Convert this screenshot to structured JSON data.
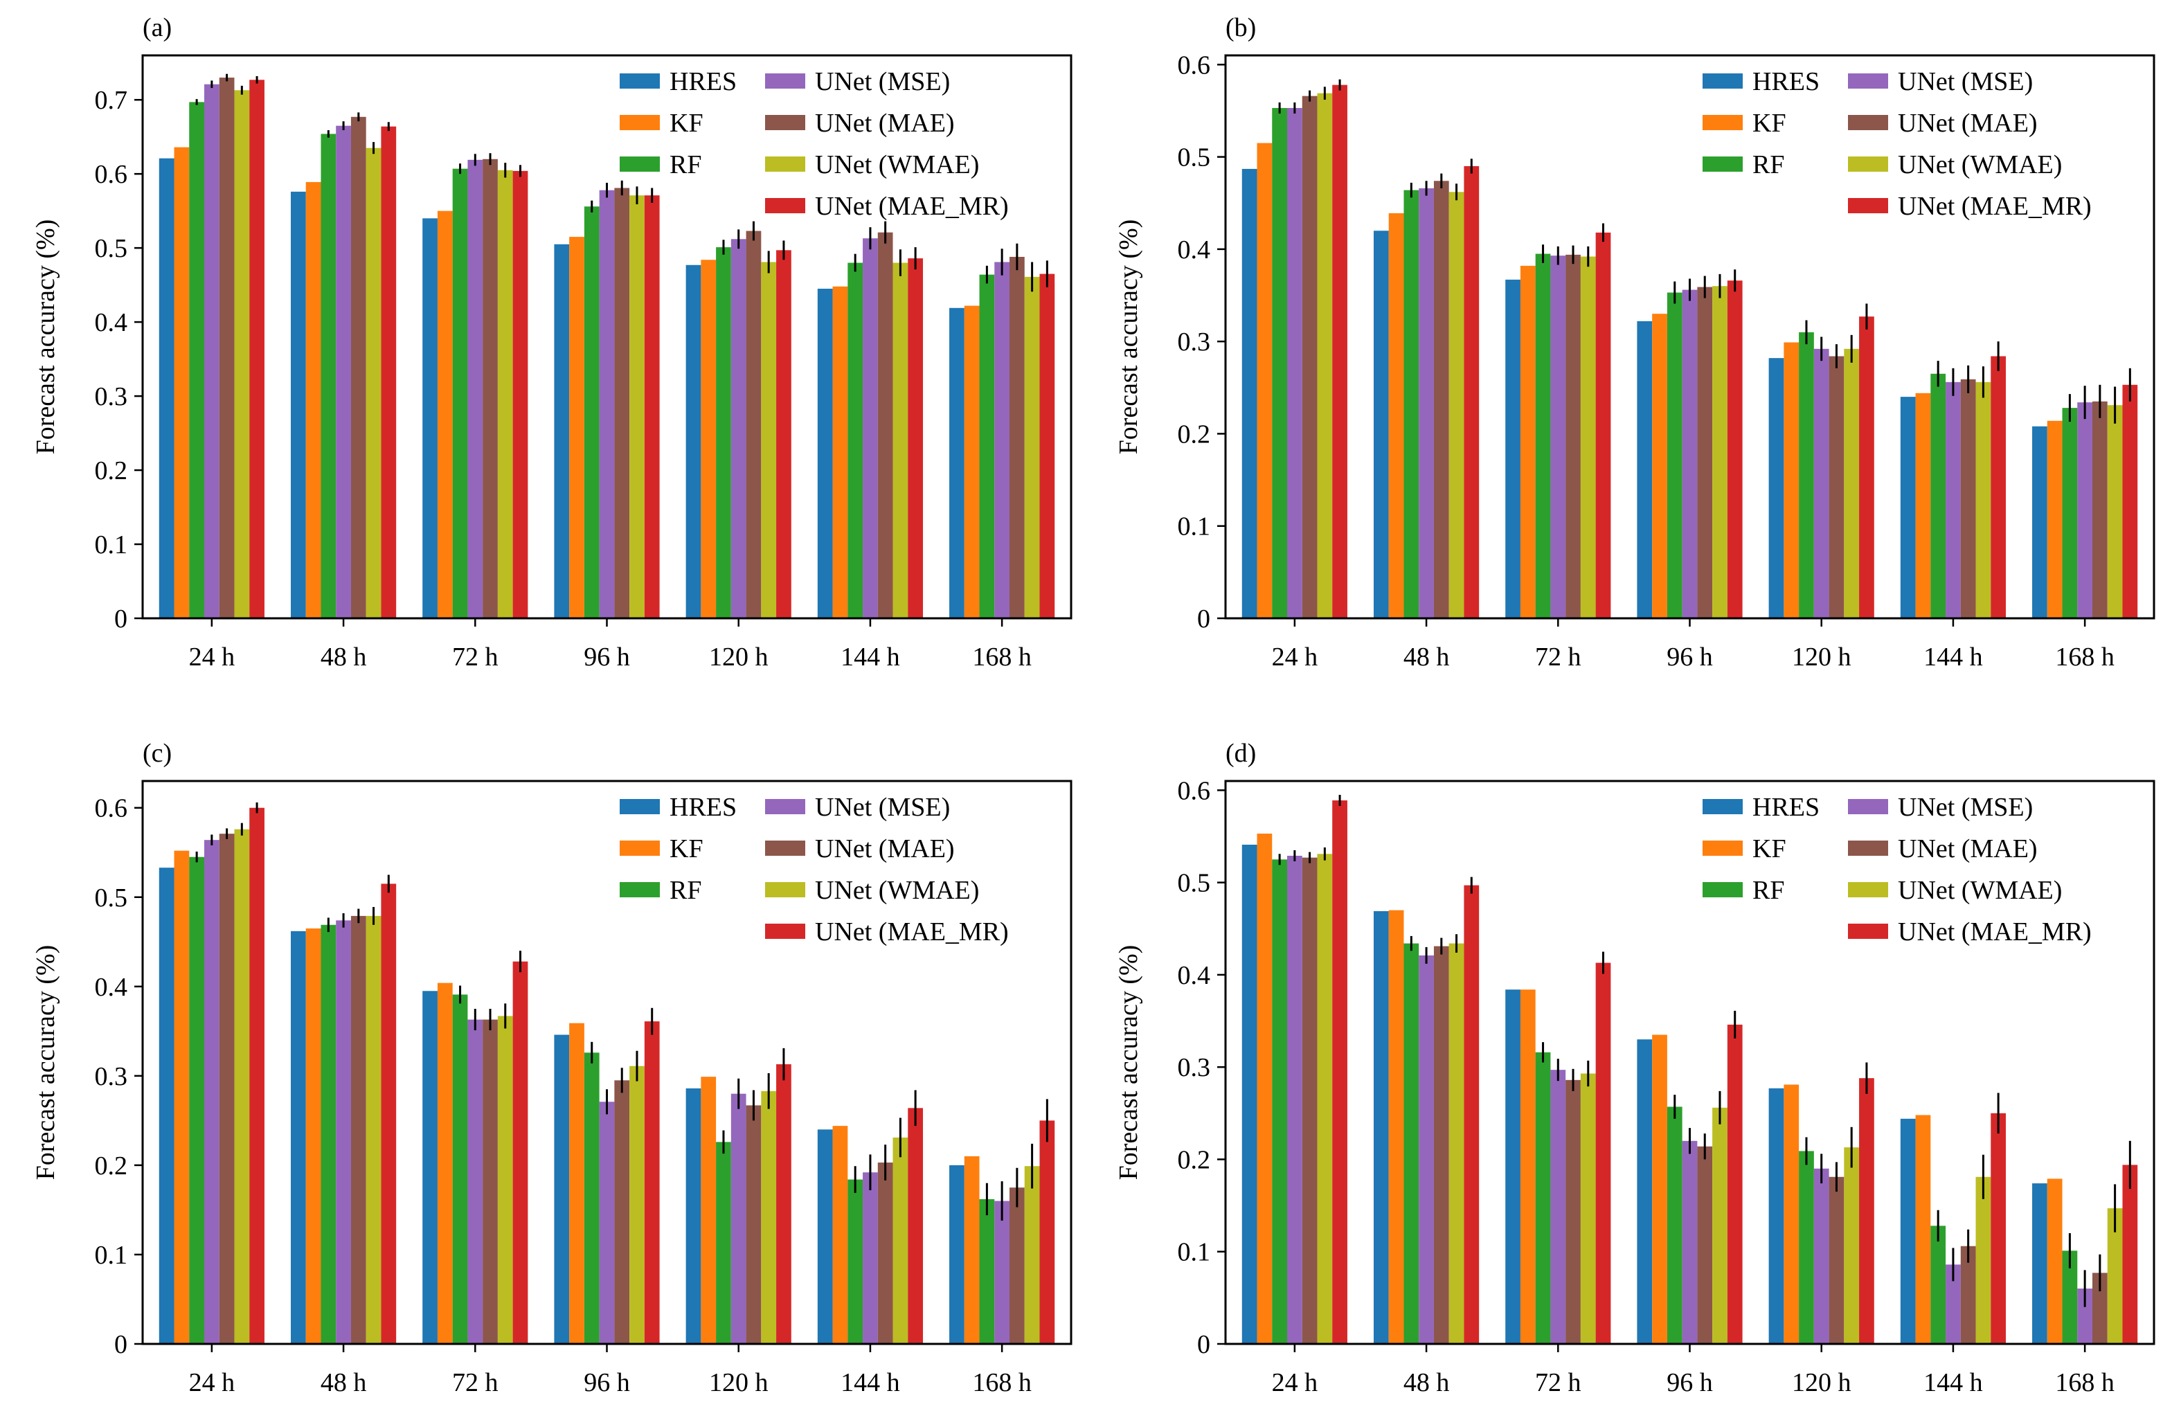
{
  "colors": {
    "HRES": "#1f77b4",
    "KF": "#ff7f0e",
    "RF": "#2ca02c",
    "UNet (MSE)": "#9467bd",
    "UNet (MAE)": "#8c564b",
    "UNet (WMAE)": "#bcbd22",
    "UNet (MAE_MR)": "#d62728"
  },
  "chart_data": [
    {
      "panel_label": "(a)",
      "type": "bar",
      "ylabel": "Forecast accuracy (%)",
      "ylim": [
        0,
        0.76
      ],
      "yticks": [
        "0",
        "0.1",
        "0.2",
        "0.3",
        "0.4",
        "0.5",
        "0.6",
        "0.7"
      ],
      "categories": [
        "24 h",
        "48 h",
        "72 h",
        "96 h",
        "120 h",
        "144 h",
        "168 h"
      ],
      "legend_position": "top-right",
      "series": [
        {
          "name": "HRES",
          "values": [
            0.621,
            0.576,
            0.54,
            0.505,
            0.477,
            0.445,
            0.419
          ],
          "err": [
            0,
            0,
            0,
            0,
            0,
            0,
            0
          ]
        },
        {
          "name": "KF",
          "values": [
            0.636,
            0.589,
            0.55,
            0.515,
            0.484,
            0.448,
            0.422
          ],
          "err": [
            0,
            0,
            0,
            0,
            0,
            0,
            0
          ]
        },
        {
          "name": "RF",
          "values": [
            0.697,
            0.654,
            0.607,
            0.556,
            0.501,
            0.48,
            0.464
          ],
          "err": [
            0.004,
            0.005,
            0.007,
            0.008,
            0.01,
            0.012,
            0.012
          ]
        },
        {
          "name": "UNet (MSE)",
          "values": [
            0.721,
            0.665,
            0.619,
            0.578,
            0.512,
            0.513,
            0.481
          ],
          "err": [
            0.005,
            0.006,
            0.008,
            0.01,
            0.013,
            0.015,
            0.018
          ]
        },
        {
          "name": "UNet (MAE)",
          "values": [
            0.73,
            0.677,
            0.62,
            0.581,
            0.523,
            0.521,
            0.488
          ],
          "err": [
            0.005,
            0.006,
            0.008,
            0.01,
            0.013,
            0.015,
            0.018
          ]
        },
        {
          "name": "UNet (WMAE)",
          "values": [
            0.713,
            0.635,
            0.605,
            0.571,
            0.481,
            0.48,
            0.461
          ],
          "err": [
            0.006,
            0.008,
            0.01,
            0.012,
            0.015,
            0.018,
            0.02
          ]
        },
        {
          "name": "UNet (MAE_MR)",
          "values": [
            0.727,
            0.664,
            0.604,
            0.571,
            0.497,
            0.486,
            0.465
          ],
          "err": [
            0.005,
            0.006,
            0.008,
            0.01,
            0.013,
            0.015,
            0.018
          ]
        }
      ]
    },
    {
      "panel_label": "(b)",
      "type": "bar",
      "ylabel": "Forecast accuracy (%)",
      "ylim": [
        0,
        0.61
      ],
      "yticks": [
        "0",
        "0.1",
        "0.2",
        "0.3",
        "0.4",
        "0.5",
        "0.6"
      ],
      "categories": [
        "24 h",
        "48 h",
        "72 h",
        "96 h",
        "120 h",
        "144 h",
        "168 h"
      ],
      "legend_position": "top-right",
      "series": [
        {
          "name": "HRES",
          "values": [
            0.487,
            0.42,
            0.367,
            0.322,
            0.282,
            0.24,
            0.208
          ],
          "err": [
            0,
            0,
            0,
            0,
            0,
            0,
            0
          ]
        },
        {
          "name": "KF",
          "values": [
            0.515,
            0.439,
            0.382,
            0.33,
            0.299,
            0.244,
            0.214
          ],
          "err": [
            0,
            0,
            0,
            0,
            0,
            0,
            0
          ]
        },
        {
          "name": "RF",
          "values": [
            0.553,
            0.464,
            0.395,
            0.353,
            0.31,
            0.265,
            0.228
          ],
          "err": [
            0.006,
            0.008,
            0.01,
            0.012,
            0.013,
            0.014,
            0.015
          ]
        },
        {
          "name": "UNet (MSE)",
          "values": [
            0.553,
            0.466,
            0.393,
            0.356,
            0.292,
            0.256,
            0.234
          ],
          "err": [
            0.006,
            0.008,
            0.01,
            0.012,
            0.013,
            0.015,
            0.018
          ]
        },
        {
          "name": "UNet (MAE)",
          "values": [
            0.566,
            0.474,
            0.394,
            0.359,
            0.284,
            0.259,
            0.235
          ],
          "err": [
            0.006,
            0.008,
            0.01,
            0.012,
            0.013,
            0.015,
            0.018
          ]
        },
        {
          "name": "UNet (WMAE)",
          "values": [
            0.569,
            0.462,
            0.392,
            0.36,
            0.292,
            0.256,
            0.231
          ],
          "err": [
            0.007,
            0.009,
            0.011,
            0.013,
            0.015,
            0.017,
            0.02
          ]
        },
        {
          "name": "UNet (MAE_MR)",
          "values": [
            0.578,
            0.49,
            0.418,
            0.366,
            0.327,
            0.284,
            0.253
          ],
          "err": [
            0.006,
            0.008,
            0.01,
            0.012,
            0.014,
            0.016,
            0.018
          ]
        }
      ]
    },
    {
      "panel_label": "(c)",
      "type": "bar",
      "ylabel": "Forecast accuracy (%)",
      "ylim": [
        0,
        0.63
      ],
      "yticks": [
        "0",
        "0.1",
        "0.2",
        "0.3",
        "0.4",
        "0.5",
        "0.6"
      ],
      "categories": [
        "24 h",
        "48 h",
        "72 h",
        "96 h",
        "120 h",
        "144 h",
        "168 h"
      ],
      "legend_position": "top-right",
      "series": [
        {
          "name": "HRES",
          "values": [
            0.533,
            0.462,
            0.395,
            0.346,
            0.286,
            0.24,
            0.2
          ],
          "err": [
            0,
            0,
            0,
            0,
            0,
            0,
            0
          ]
        },
        {
          "name": "KF",
          "values": [
            0.552,
            0.465,
            0.404,
            0.359,
            0.299,
            0.244,
            0.21
          ],
          "err": [
            0,
            0,
            0,
            0,
            0,
            0,
            0
          ]
        },
        {
          "name": "RF",
          "values": [
            0.545,
            0.469,
            0.391,
            0.326,
            0.226,
            0.184,
            0.162
          ],
          "err": [
            0.006,
            0.008,
            0.01,
            0.012,
            0.013,
            0.015,
            0.018
          ]
        },
        {
          "name": "UNet (MSE)",
          "values": [
            0.564,
            0.474,
            0.363,
            0.271,
            0.28,
            0.192,
            0.16
          ],
          "err": [
            0.006,
            0.008,
            0.012,
            0.014,
            0.017,
            0.02,
            0.022
          ]
        },
        {
          "name": "UNet (MAE)",
          "values": [
            0.571,
            0.479,
            0.363,
            0.295,
            0.267,
            0.203,
            0.175
          ],
          "err": [
            0.006,
            0.008,
            0.012,
            0.014,
            0.017,
            0.02,
            0.022
          ]
        },
        {
          "name": "UNet (WMAE)",
          "values": [
            0.576,
            0.479,
            0.367,
            0.311,
            0.283,
            0.231,
            0.199
          ],
          "err": [
            0.007,
            0.01,
            0.014,
            0.017,
            0.02,
            0.022,
            0.025
          ]
        },
        {
          "name": "UNet (MAE_MR)",
          "values": [
            0.6,
            0.515,
            0.428,
            0.361,
            0.313,
            0.264,
            0.25
          ],
          "err": [
            0.006,
            0.01,
            0.012,
            0.015,
            0.018,
            0.02,
            0.024
          ]
        }
      ]
    },
    {
      "panel_label": "(d)",
      "type": "bar",
      "ylabel": "Forecast accuracy (%)",
      "ylim": [
        0,
        0.61
      ],
      "yticks": [
        "0",
        "0.1",
        "0.2",
        "0.3",
        "0.4",
        "0.5",
        "0.6"
      ],
      "categories": [
        "24 h",
        "48 h",
        "72 h",
        "96 h",
        "120 h",
        "144 h",
        "168 h"
      ],
      "legend_position": "top-right",
      "series": [
        {
          "name": "HRES",
          "values": [
            0.541,
            0.469,
            0.384,
            0.33,
            0.277,
            0.244,
            0.174
          ],
          "err": [
            0,
            0,
            0,
            0,
            0,
            0,
            0
          ]
        },
        {
          "name": "KF",
          "values": [
            0.553,
            0.47,
            0.384,
            0.335,
            0.281,
            0.248,
            0.179
          ],
          "err": [
            0,
            0,
            0,
            0,
            0,
            0,
            0
          ]
        },
        {
          "name": "RF",
          "values": [
            0.525,
            0.434,
            0.316,
            0.257,
            0.209,
            0.128,
            0.101
          ],
          "err": [
            0.006,
            0.008,
            0.011,
            0.013,
            0.015,
            0.017,
            0.019
          ]
        },
        {
          "name": "UNet (MSE)",
          "values": [
            0.529,
            0.421,
            0.297,
            0.22,
            0.19,
            0.086,
            0.06
          ],
          "err": [
            0.006,
            0.009,
            0.012,
            0.014,
            0.016,
            0.018,
            0.02
          ]
        },
        {
          "name": "UNet (MAE)",
          "values": [
            0.527,
            0.431,
            0.286,
            0.214,
            0.181,
            0.106,
            0.077
          ],
          "err": [
            0.006,
            0.009,
            0.012,
            0.014,
            0.016,
            0.018,
            0.02
          ]
        },
        {
          "name": "UNet (WMAE)",
          "values": [
            0.531,
            0.434,
            0.293,
            0.256,
            0.213,
            0.181,
            0.147
          ],
          "err": [
            0.007,
            0.01,
            0.014,
            0.018,
            0.022,
            0.024,
            0.026
          ]
        },
        {
          "name": "UNet (MAE_MR)",
          "values": [
            0.589,
            0.497,
            0.413,
            0.346,
            0.288,
            0.25,
            0.194
          ],
          "err": [
            0.006,
            0.009,
            0.012,
            0.015,
            0.017,
            0.022,
            0.026
          ]
        }
      ]
    }
  ]
}
